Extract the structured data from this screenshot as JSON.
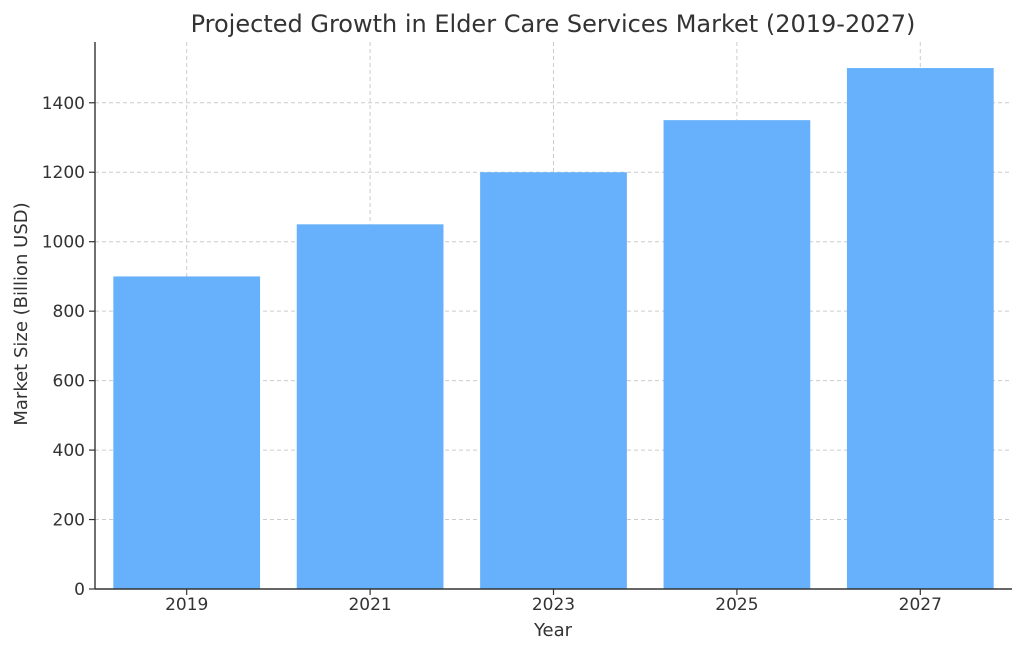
{
  "chart_data": {
    "type": "bar",
    "title": "Projected Growth in Elder Care Services Market (2019-2027)",
    "xlabel": "Year",
    "ylabel": "Market Size (Billion USD)",
    "categories": [
      "2019",
      "2021",
      "2023",
      "2025",
      "2027"
    ],
    "values": [
      900,
      1050,
      1200,
      1350,
      1500
    ],
    "ylim": [
      0,
      1575
    ],
    "yticks": [
      0,
      200,
      400,
      600,
      800,
      1000,
      1200,
      1400
    ],
    "grid": true,
    "bar_color": "#66b0fc"
  }
}
